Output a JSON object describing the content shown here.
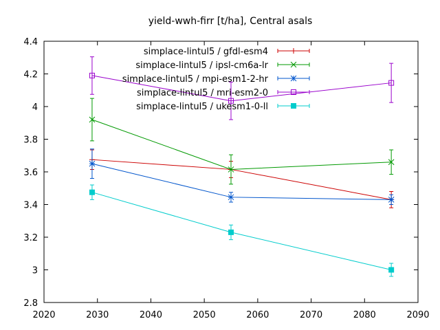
{
  "chart_data": {
    "type": "line",
    "title": "yield-wwh-firr [t/ha], Central asals",
    "xlabel": "",
    "ylabel": "",
    "xlim": [
      2020,
      2090
    ],
    "ylim": [
      2.8,
      4.4
    ],
    "xticks": [
      2020,
      2030,
      2040,
      2050,
      2060,
      2070,
      2080,
      2090
    ],
    "yticks": [
      2.8,
      3,
      3.2,
      3.4,
      3.6,
      3.8,
      4,
      4.2,
      4.4
    ],
    "x": [
      2029,
      2055,
      2085
    ],
    "grid": false,
    "legend": "top-center",
    "series": [
      {
        "name": "simplace-lintul5 / gfdl-esm4",
        "color": "#cc0000",
        "marker": "plus",
        "values": [
          3.675,
          3.615,
          3.43
        ],
        "errors": [
          0.06,
          0.05,
          0.05
        ]
      },
      {
        "name": "simplace-lintul5 / ipsl-cm6a-lr",
        "color": "#009900",
        "marker": "cross",
        "values": [
          3.92,
          3.615,
          3.66
        ],
        "errors": [
          0.13,
          0.09,
          0.075
        ]
      },
      {
        "name": "simplace-lintul5 / mpi-esm1-2-hr",
        "color": "#0055cc",
        "marker": "star",
        "values": [
          3.65,
          3.445,
          3.43
        ],
        "errors": [
          0.09,
          0.03,
          0.03
        ]
      },
      {
        "name": "simplace-lintul5 / mri-esm2-0",
        "color": "#9900cc",
        "marker": "square-open",
        "values": [
          4.19,
          4.035,
          4.145
        ],
        "errors": [
          0.115,
          0.115,
          0.12
        ]
      },
      {
        "name": "simplace-lintul5 / ukesm1-0-ll",
        "color": "#00cccc",
        "marker": "square-filled",
        "values": [
          3.475,
          3.23,
          3.0
        ],
        "errors": [
          0.045,
          0.045,
          0.04
        ]
      }
    ]
  }
}
